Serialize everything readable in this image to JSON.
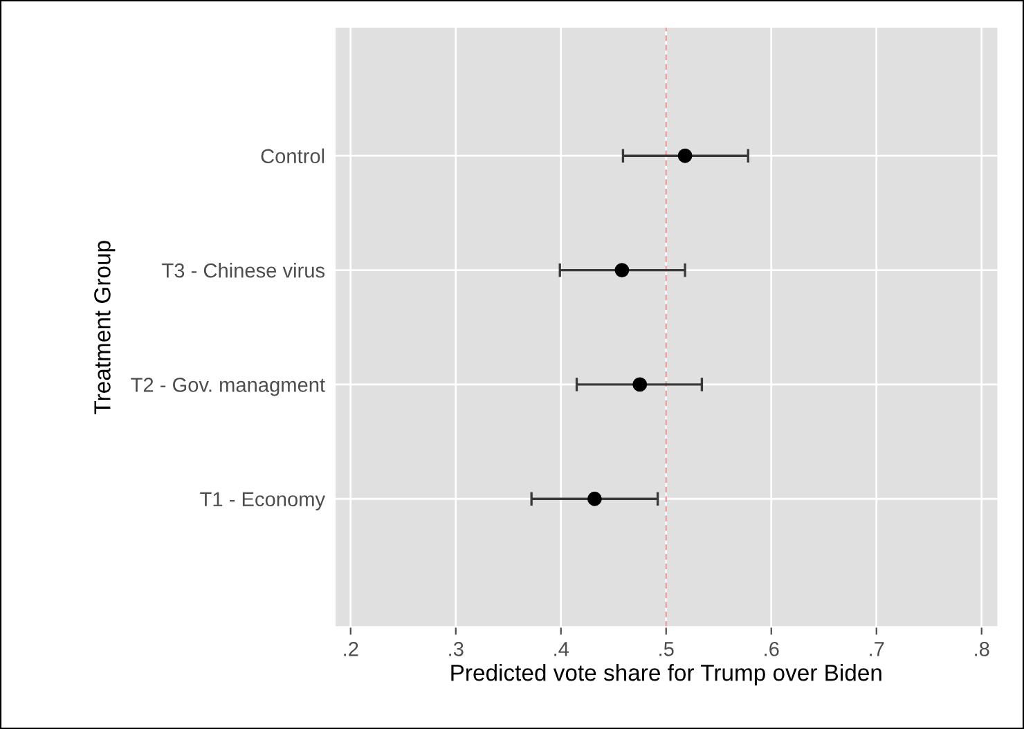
{
  "chart_data": {
    "type": "scatter",
    "orientation": "horizontal",
    "xlabel": "Predicted vote share for Trump over Biden",
    "ylabel": "Treatment Group",
    "categories": [
      "Control",
      "T3 - Chinese virus",
      "T2 - Gov. managment",
      "T1 - Economy"
    ],
    "values": [
      0.518,
      0.458,
      0.475,
      0.432
    ],
    "errors": [
      [
        0.459,
        0.578
      ],
      [
        0.399,
        0.518
      ],
      [
        0.415,
        0.534
      ],
      [
        0.372,
        0.492
      ]
    ],
    "color": "#000000",
    "marker": "circle",
    "xlim": [
      0.185,
      0.815
    ],
    "xticks": [
      {
        "value": 0.2,
        "label": ".2"
      },
      {
        "value": 0.3,
        "label": ".3"
      },
      {
        "value": 0.4,
        "label": ".4"
      },
      {
        "value": 0.5,
        "label": ".5"
      },
      {
        "value": 0.6,
        "label": ".6"
      },
      {
        "value": 0.7,
        "label": ".7"
      },
      {
        "value": 0.8,
        "label": ".8"
      }
    ],
    "ref_lines": [
      {
        "axis": "x",
        "value": 0.5,
        "color": "#f4a3a0",
        "line_style": "dashed"
      }
    ],
    "grid": true
  }
}
